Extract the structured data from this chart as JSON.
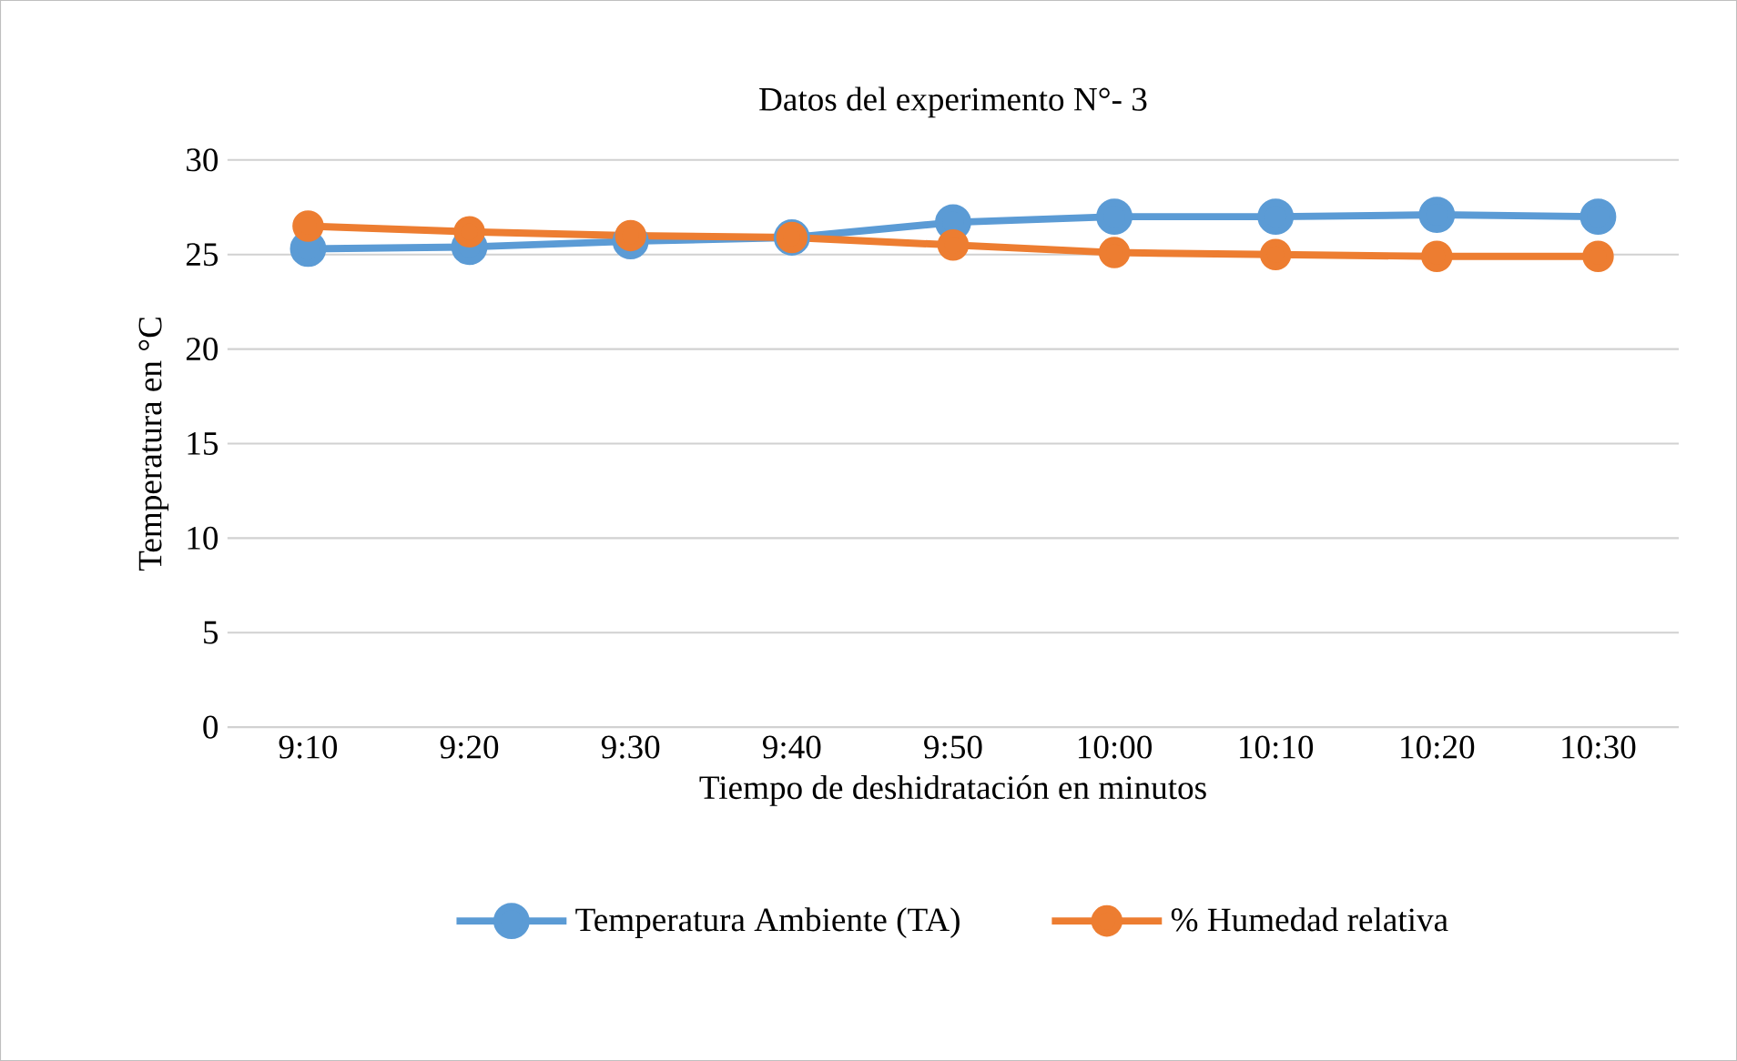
{
  "chart_data": {
    "type": "line",
    "title": "Datos del experimento N°- 3",
    "xlabel": "Tiempo de deshidratación en minutos",
    "ylabel": "Temperatura en °C",
    "categories": [
      "9:10",
      "9:20",
      "9:30",
      "9:40",
      "9:50",
      "10:00",
      "10:10",
      "10:20",
      "10:30"
    ],
    "series": [
      {
        "name": "Temperatura Ambiente (TA)",
        "color": "#5b9bd5",
        "values": [
          25.3,
          25.4,
          25.7,
          25.9,
          26.7,
          27.0,
          27.0,
          27.1,
          27.0
        ]
      },
      {
        "name": "% Humedad relativa",
        "color": "#ed7d31",
        "values": [
          26.5,
          26.2,
          26.0,
          25.9,
          25.5,
          25.1,
          25.0,
          24.9,
          24.9
        ]
      }
    ],
    "ylim": [
      0,
      30
    ],
    "yticks": [
      0,
      5,
      10,
      15,
      20,
      25,
      30
    ],
    "grid": "y",
    "legend": "bottom",
    "marker": "circle",
    "line_style": "solid"
  }
}
